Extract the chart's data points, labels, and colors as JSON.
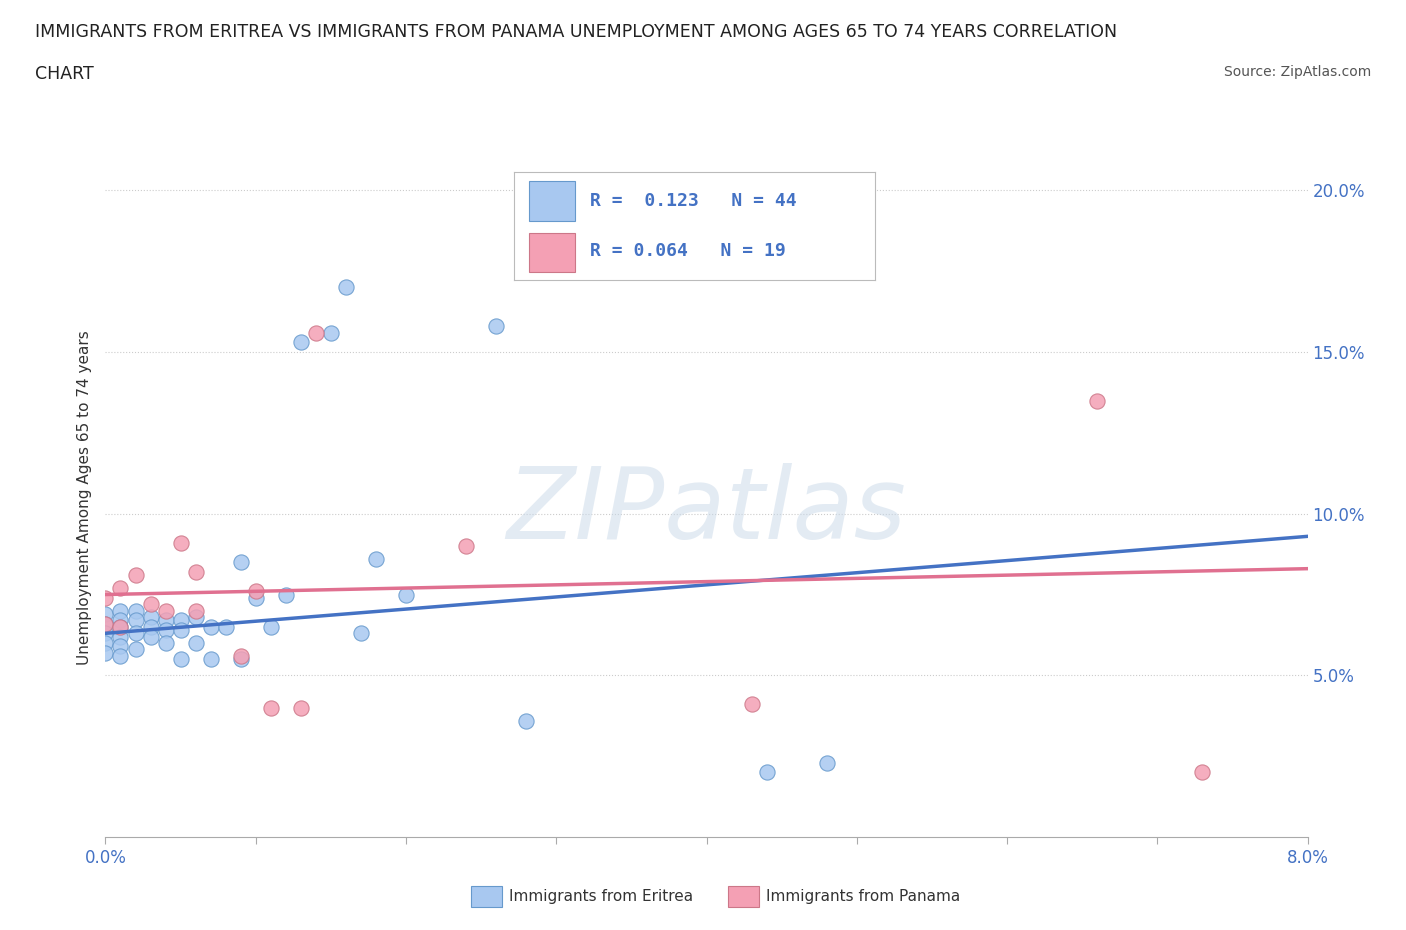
{
  "title_line1": "IMMIGRANTS FROM ERITREA VS IMMIGRANTS FROM PANAMA UNEMPLOYMENT AMONG AGES 65 TO 74 YEARS CORRELATION",
  "title_line2": "CHART",
  "source_text": "Source: ZipAtlas.com",
  "ylabel": "Unemployment Among Ages 65 to 74 years",
  "xlim": [
    0.0,
    0.08
  ],
  "ylim": [
    0.0,
    0.21
  ],
  "ytick_positions": [
    0.05,
    0.1,
    0.15,
    0.2
  ],
  "ytick_labels": [
    "5.0%",
    "10.0%",
    "15.0%",
    "20.0%"
  ],
  "eritrea_color": "#a8c8f0",
  "eritrea_edge_color": "#6699cc",
  "panama_color": "#f4a0b4",
  "panama_edge_color": "#cc7788",
  "eritrea_line_color": "#4472c4",
  "panama_line_color": "#e07090",
  "R_eritrea": 0.123,
  "N_eritrea": 44,
  "R_panama": 0.064,
  "N_panama": 19,
  "background_color": "#ffffff",
  "watermark_text": "ZIPatlas",
  "legend_label_eritrea": "Immigrants from Eritrea",
  "legend_label_panama": "Immigrants from Panama",
  "eritrea_x": [
    0.0,
    0.0,
    0.0,
    0.0,
    0.0,
    0.001,
    0.001,
    0.001,
    0.001,
    0.001,
    0.001,
    0.002,
    0.002,
    0.002,
    0.002,
    0.003,
    0.003,
    0.003,
    0.004,
    0.004,
    0.004,
    0.005,
    0.005,
    0.005,
    0.006,
    0.006,
    0.007,
    0.007,
    0.008,
    0.009,
    0.009,
    0.01,
    0.011,
    0.012,
    0.013,
    0.015,
    0.016,
    0.017,
    0.018,
    0.02,
    0.026,
    0.028,
    0.044,
    0.048
  ],
  "eritrea_y": [
    0.069,
    0.066,
    0.063,
    0.06,
    0.057,
    0.07,
    0.067,
    0.065,
    0.062,
    0.059,
    0.056,
    0.07,
    0.067,
    0.063,
    0.058,
    0.068,
    0.065,
    0.062,
    0.067,
    0.064,
    0.06,
    0.067,
    0.064,
    0.055,
    0.068,
    0.06,
    0.065,
    0.055,
    0.065,
    0.085,
    0.055,
    0.074,
    0.065,
    0.075,
    0.153,
    0.156,
    0.17,
    0.063,
    0.086,
    0.075,
    0.158,
    0.036,
    0.02,
    0.023
  ],
  "panama_x": [
    0.0,
    0.0,
    0.001,
    0.001,
    0.002,
    0.003,
    0.004,
    0.005,
    0.006,
    0.006,
    0.009,
    0.01,
    0.011,
    0.013,
    0.014,
    0.024,
    0.043,
    0.066,
    0.073
  ],
  "panama_y": [
    0.074,
    0.066,
    0.077,
    0.065,
    0.081,
    0.072,
    0.07,
    0.091,
    0.082,
    0.07,
    0.056,
    0.076,
    0.04,
    0.04,
    0.156,
    0.09,
    0.041,
    0.135,
    0.02
  ],
  "eritrea_trend_x0": 0.0,
  "eritrea_trend_x1": 0.08,
  "eritrea_trend_y0": 0.063,
  "eritrea_trend_y1": 0.093,
  "panama_trend_x0": 0.0,
  "panama_trend_x1": 0.08,
  "panama_trend_y0": 0.075,
  "panama_trend_y1": 0.083,
  "xtick_positions": [
    0.0,
    0.01,
    0.02,
    0.03,
    0.04,
    0.05,
    0.06,
    0.07,
    0.08
  ]
}
